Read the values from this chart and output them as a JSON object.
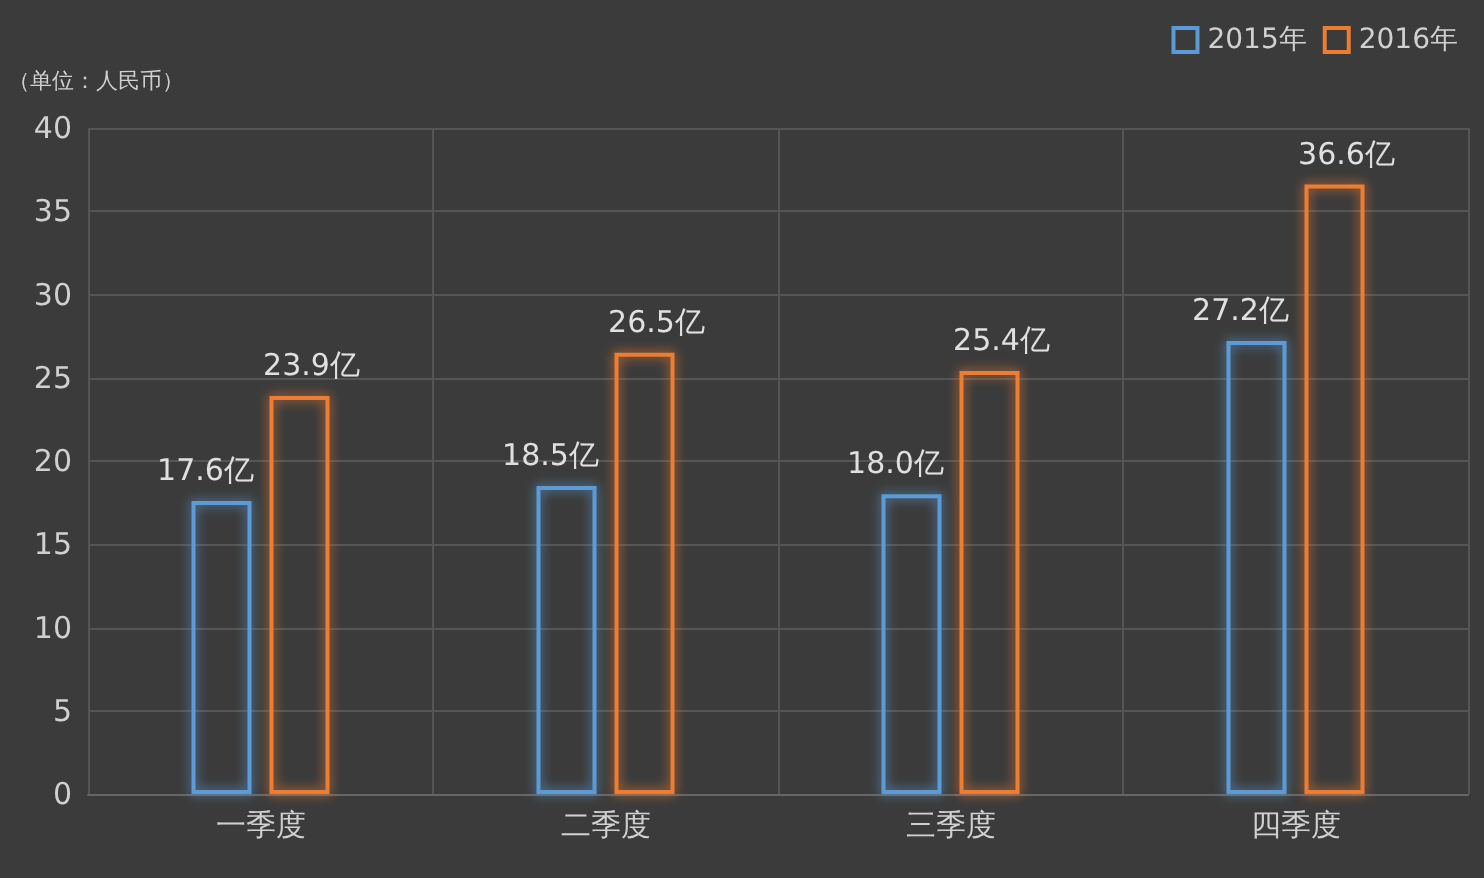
{
  "chart_data": {
    "type": "bar",
    "ylabel": "（单位：人民币）",
    "categories": [
      "一季度",
      "二季度",
      "三季度",
      "四季度"
    ],
    "series": [
      {
        "name": "2015年",
        "color": "#5b9bd5",
        "values": [
          17.6,
          18.5,
          18.0,
          27.2
        ],
        "value_labels": [
          "17.6亿",
          "18.5亿",
          "18.0亿",
          "27.2亿"
        ]
      },
      {
        "name": "2016年",
        "color": "#ed7d31",
        "values": [
          23.9,
          26.5,
          25.4,
          36.6
        ],
        "value_labels": [
          "23.9亿",
          "26.5亿",
          "25.4亿",
          "36.6亿"
        ]
      }
    ],
    "ylim": [
      0,
      40
    ],
    "yticks": [
      0,
      5,
      10,
      15,
      20,
      25,
      30,
      35,
      40
    ],
    "grid": true,
    "legend": "top right"
  }
}
